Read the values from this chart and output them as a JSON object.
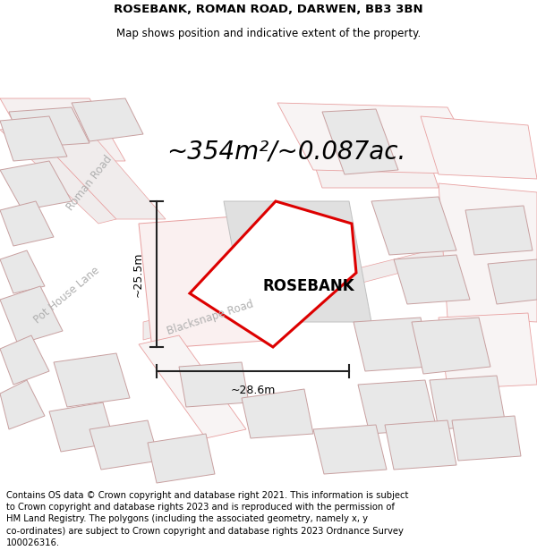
{
  "title_line1": "ROSEBANK, ROMAN ROAD, DARWEN, BB3 3BN",
  "title_line2": "Map shows position and indicative extent of the property.",
  "area_text": "~354m²/~0.087ac.",
  "dim_vertical": "~25.5m",
  "dim_horizontal": "~28.6m",
  "property_label": "ROSEBANK",
  "road_label1": "Roman Road",
  "road_label2": "Pot House Lane",
  "road_label3": "Blacksnape Road",
  "footer_text": "Contains OS data © Crown copyright and database right 2021. This information is subject\nto Crown copyright and database rights 2023 and is reproduced with the permission of\nHM Land Registry. The polygons (including the associated geometry, namely x, y\nco-ordinates) are subject to Crown copyright and database rights 2023 Ordnance Survey\n100026316.",
  "bg_color": "#ffffff",
  "map_bg": "#f7f7f7",
  "highlight_color": "#dd0000",
  "outline_color": "#e8a0a0",
  "building_fill": "#e8e8e8",
  "building_stroke": "#c8a0a0",
  "title_fontsize": 9.5,
  "subtitle_fontsize": 8.5,
  "area_fontsize": 20,
  "label_fontsize": 12,
  "road_fontsize": 8.5,
  "footer_fontsize": 7.2,
  "dim_fontsize": 9
}
